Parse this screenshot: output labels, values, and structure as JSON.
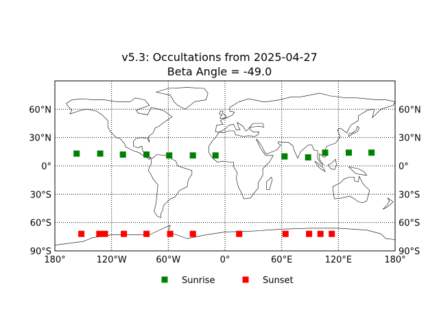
{
  "title": "v5.3: Occultations from 2025-04-27",
  "subtitle": "Beta Angle = -49.0",
  "chart_data": {
    "type": "scatter",
    "projection": "equirectangular",
    "xlim": [
      -180,
      180
    ],
    "ylim": [
      -90,
      90
    ],
    "grid": true,
    "grid_style": "dotted",
    "x_ticks": [
      -180,
      -120,
      -60,
      0,
      60,
      120,
      180
    ],
    "x_tick_labels": [
      "180°",
      "120°W",
      "60°W",
      "0°",
      "60°E",
      "120°E",
      "180°"
    ],
    "y_ticks": [
      -90,
      -60,
      -30,
      0,
      30,
      60
    ],
    "y_tick_labels": [
      "90°S",
      "60°S",
      "30°S",
      "0°",
      "30°N",
      "60°N"
    ],
    "legend_position": "bottom-center",
    "series": [
      {
        "name": "Sunrise",
        "color": "#008000",
        "marker": "square",
        "points": [
          [
            -157,
            13
          ],
          [
            -132,
            13
          ],
          [
            -108,
            12
          ],
          [
            -83,
            12
          ],
          [
            -59,
            11
          ],
          [
            -34,
            11
          ],
          [
            -10,
            11
          ],
          [
            63,
            10
          ],
          [
            88,
            9
          ],
          [
            106,
            14
          ],
          [
            131,
            14
          ],
          [
            155,
            14
          ]
        ]
      },
      {
        "name": "Sunset",
        "color": "#ff0000",
        "marker": "square",
        "points": [
          [
            -152,
            -72
          ],
          [
            -133,
            -72
          ],
          [
            -127,
            -72
          ],
          [
            -107,
            -72
          ],
          [
            -83,
            -72
          ],
          [
            -58,
            -72
          ],
          [
            -34,
            -72
          ],
          [
            15,
            -72
          ],
          [
            64,
            -72
          ],
          [
            89,
            -72
          ],
          [
            101,
            -72
          ],
          [
            113,
            -72
          ]
        ]
      }
    ]
  }
}
